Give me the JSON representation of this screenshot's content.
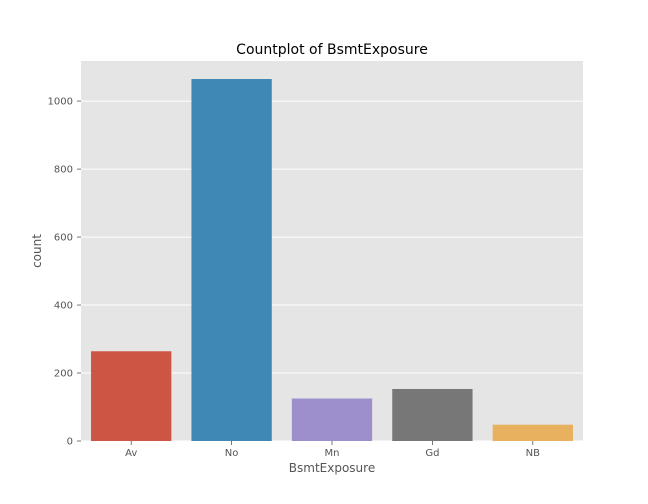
{
  "chart_data": {
    "type": "bar",
    "title": "Countplot of BsmtExposure",
    "xlabel": "BsmtExposure",
    "ylabel": "count",
    "categories": [
      "Av",
      "No",
      "Mn",
      "Gd",
      "NB"
    ],
    "values": [
      264,
      1065,
      125,
      153,
      48
    ],
    "colors": [
      "#CC5544",
      "#3F87B4",
      "#9D8FCC",
      "#777777",
      "#E7B15F"
    ],
    "ylim": [
      0,
      1118
    ],
    "yticks": [
      0,
      200,
      400,
      600,
      800,
      1000
    ],
    "grid": true,
    "background_color": "#E5E5E5",
    "grid_color": "#FFFFFF"
  }
}
